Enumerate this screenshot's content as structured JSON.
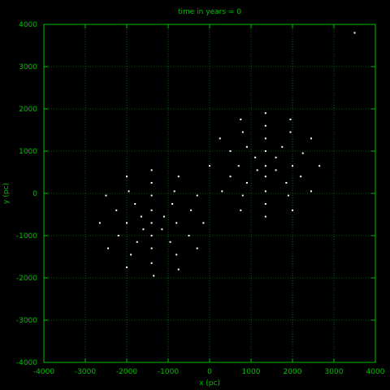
{
  "chart_data": {
    "type": "scatter",
    "title": "time in years = 0",
    "xlabel": "x (pc)",
    "ylabel": "y (pc)",
    "xlim": [
      -4000,
      4000
    ],
    "ylim": [
      -4000,
      4000
    ],
    "xticks": [
      -4000,
      -3000,
      -2000,
      -1000,
      0,
      1000,
      2000,
      3000,
      4000
    ],
    "yticks": [
      -4000,
      -3000,
      -2000,
      -1000,
      0,
      1000,
      2000,
      3000,
      4000
    ],
    "grid": true,
    "colors": {
      "background": "#000000",
      "axis": "#00c000",
      "grid": "#008000",
      "points": "#ffffff"
    },
    "points": [
      [
        3500,
        3800
      ],
      [
        1350,
        1900
      ],
      [
        1950,
        1750
      ],
      [
        750,
        1750
      ],
      [
        1350,
        1600
      ],
      [
        800,
        1450
      ],
      [
        1950,
        1450
      ],
      [
        1350,
        1300
      ],
      [
        250,
        1300
      ],
      [
        2450,
        1300
      ],
      [
        900,
        1100
      ],
      [
        1750,
        1100
      ],
      [
        500,
        1000
      ],
      [
        1350,
        1000
      ],
      [
        2250,
        950
      ],
      [
        1100,
        850
      ],
      [
        1600,
        850
      ],
      [
        0,
        650
      ],
      [
        700,
        650
      ],
      [
        1350,
        650
      ],
      [
        2000,
        650
      ],
      [
        2650,
        650
      ],
      [
        1150,
        550
      ],
      [
        1600,
        550
      ],
      [
        500,
        400
      ],
      [
        1350,
        400
      ],
      [
        2200,
        400
      ],
      [
        900,
        250
      ],
      [
        1850,
        250
      ],
      [
        300,
        50
      ],
      [
        1350,
        50
      ],
      [
        2450,
        50
      ],
      [
        800,
        -50
      ],
      [
        1900,
        -50
      ],
      [
        1350,
        -250
      ],
      [
        750,
        -400
      ],
      [
        2000,
        -400
      ],
      [
        1350,
        -550
      ],
      [
        -1400,
        550
      ],
      [
        -2000,
        400
      ],
      [
        -750,
        400
      ],
      [
        -1400,
        250
      ],
      [
        -1950,
        50
      ],
      [
        -850,
        50
      ],
      [
        -2500,
        -50
      ],
      [
        -1400,
        -50
      ],
      [
        -300,
        -50
      ],
      [
        -1800,
        -250
      ],
      [
        -900,
        -250
      ],
      [
        -2250,
        -400
      ],
      [
        -1400,
        -400
      ],
      [
        -450,
        -400
      ],
      [
        -1650,
        -550
      ],
      [
        -1100,
        -550
      ],
      [
        -2650,
        -700
      ],
      [
        -2000,
        -700
      ],
      [
        -1400,
        -700
      ],
      [
        -800,
        -700
      ],
      [
        -150,
        -700
      ],
      [
        -1600,
        -850
      ],
      [
        -1150,
        -850
      ],
      [
        -2200,
        -1000
      ],
      [
        -1400,
        -1000
      ],
      [
        -500,
        -1000
      ],
      [
        -1750,
        -1150
      ],
      [
        -950,
        -1150
      ],
      [
        -2450,
        -1300
      ],
      [
        -1400,
        -1300
      ],
      [
        -300,
        -1300
      ],
      [
        -1900,
        -1450
      ],
      [
        -800,
        -1450
      ],
      [
        -1400,
        -1650
      ],
      [
        -2000,
        -1750
      ],
      [
        -750,
        -1800
      ],
      [
        -1350,
        -1950
      ]
    ]
  }
}
